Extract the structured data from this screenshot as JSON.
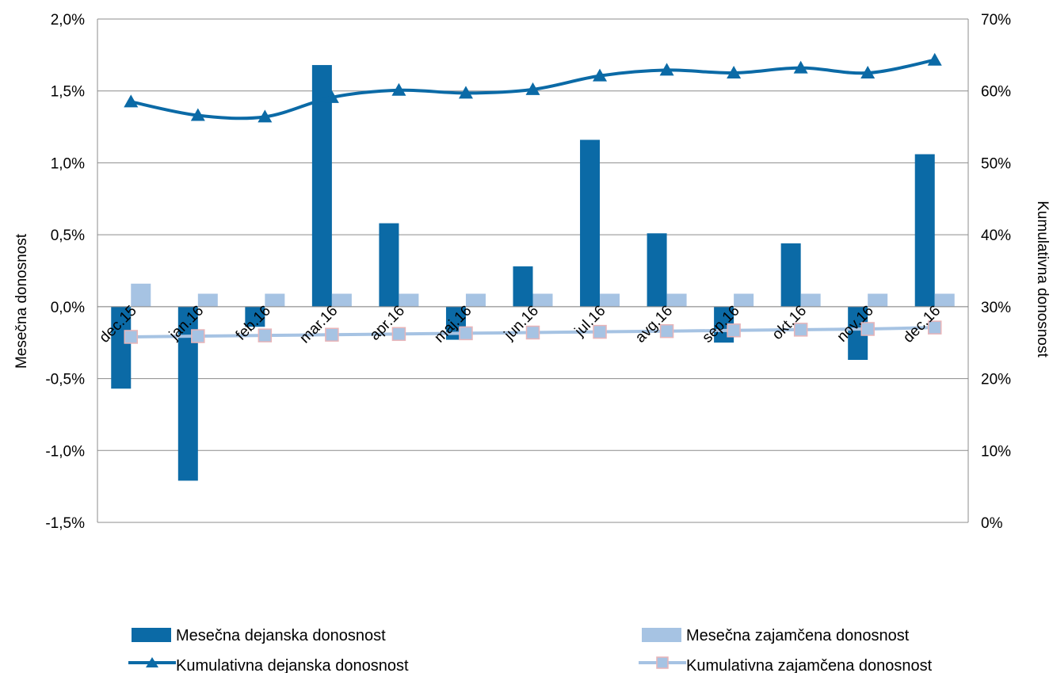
{
  "chart_data": {
    "type": "bar",
    "categories": [
      "dec.15",
      "jan.16",
      "feb.16",
      "mar.16",
      "apr.16",
      "maj.16",
      "jun.16",
      "jul.16",
      "avg.16",
      "sep.16",
      "okt.16",
      "nov.16",
      "dec.16"
    ],
    "series": [
      {
        "name": "Mesečna dejanska donosnost",
        "kind": "bar",
        "axis": "left",
        "color": "#0b6aa6",
        "values": [
          -0.57,
          -1.21,
          -0.14,
          1.68,
          0.58,
          -0.23,
          0.28,
          1.16,
          0.51,
          -0.25,
          0.44,
          -0.37,
          1.06
        ]
      },
      {
        "name": "Mesečna zajamčena donosnost",
        "kind": "bar",
        "axis": "left",
        "color": "#a6c3e3",
        "values": [
          0.16,
          0.09,
          0.09,
          0.09,
          0.09,
          0.09,
          0.09,
          0.09,
          0.09,
          0.09,
          0.09,
          0.09,
          0.09
        ]
      },
      {
        "name": "Kumulativna dejanska donosnost",
        "kind": "line",
        "axis": "right",
        "marker": "triangle",
        "color": "#0b6aa6",
        "values": [
          58.5,
          56.6,
          56.4,
          59.1,
          60.1,
          59.7,
          60.2,
          62.1,
          62.9,
          62.5,
          63.2,
          62.5,
          64.3
        ]
      },
      {
        "name": "Kumulativna zajamčena donosnost",
        "kind": "line",
        "axis": "right",
        "marker": "square",
        "color": "#a6c3e3",
        "marker_border": "#e8b4b8",
        "values": [
          25.8,
          25.9,
          26.0,
          26.1,
          26.2,
          26.3,
          26.4,
          26.5,
          26.6,
          26.7,
          26.8,
          26.9,
          27.1
        ]
      }
    ],
    "ylabel": "Mesečna donosnost",
    "y2label": "Kumulativna donosnost",
    "ylim": [
      -1.5,
      2.0
    ],
    "y2lim": [
      0,
      70
    ],
    "yticks": [
      -1.5,
      -1.0,
      -0.5,
      0.0,
      0.5,
      1.0,
      1.5,
      2.0
    ],
    "y2ticks": [
      0,
      10,
      20,
      30,
      40,
      50,
      60,
      70
    ],
    "ytick_labels": [
      "-1,5%",
      "-1,0%",
      "-0,5%",
      "0,0%",
      "0,5%",
      "1,0%",
      "1,5%",
      "2,0%"
    ],
    "y2tick_labels": [
      "0%",
      "10%",
      "20%",
      "30%",
      "40%",
      "50%",
      "60%",
      "70%"
    ],
    "grid": true,
    "legend_position": "bottom"
  }
}
